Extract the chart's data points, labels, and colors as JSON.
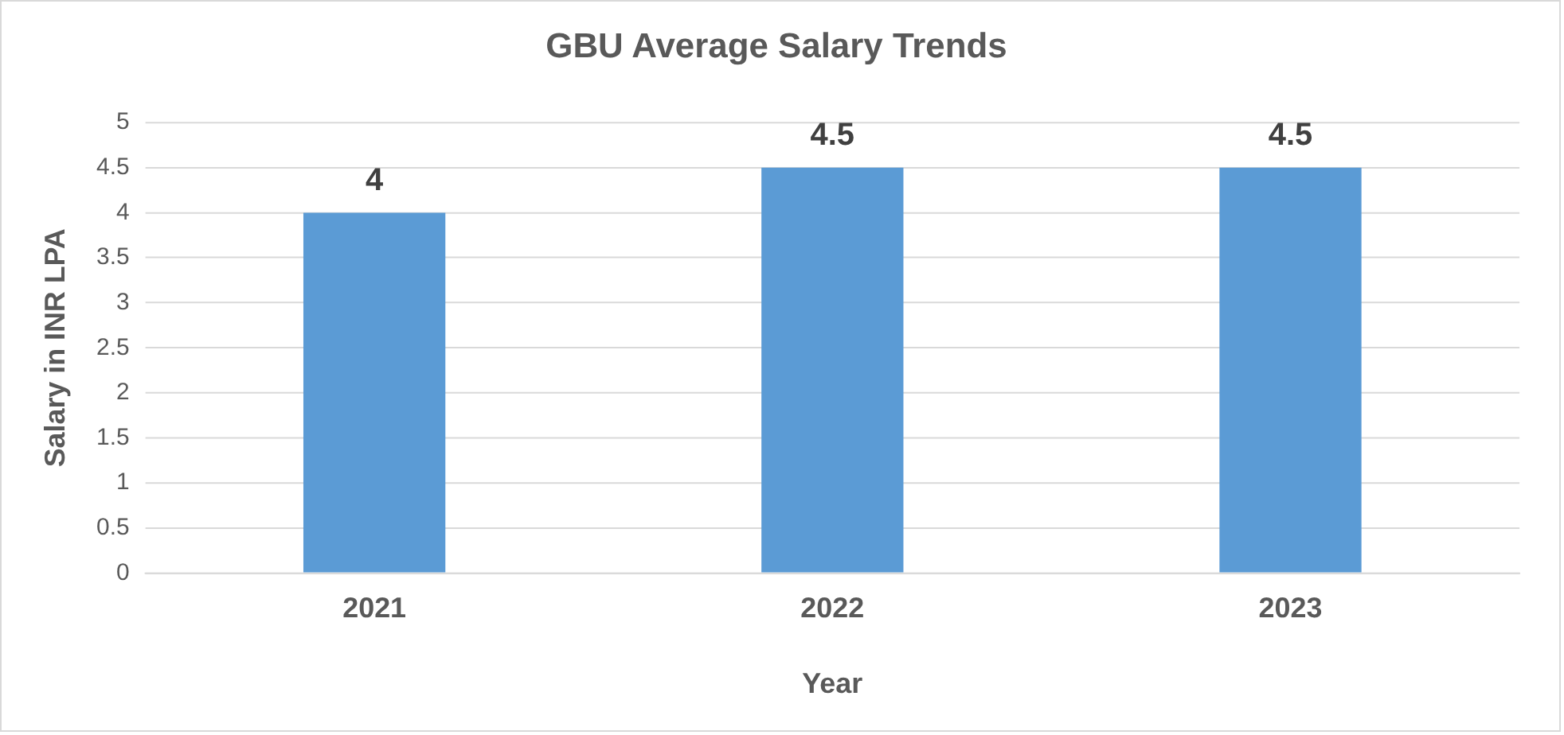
{
  "chart_data": {
    "type": "bar",
    "title": "GBU Average Salary Trends",
    "xlabel": "Year",
    "ylabel": "Salary in INR LPA",
    "categories": [
      "2021",
      "2022",
      "2023"
    ],
    "values": [
      4,
      4.5,
      4.5
    ],
    "color": "#5b9bd5",
    "ylim": [
      0,
      5
    ],
    "yticks": [
      0,
      0.5,
      1,
      1.5,
      2,
      2.5,
      3,
      3.5,
      4,
      4.5,
      5
    ],
    "grid": "y",
    "data_labels": true
  }
}
